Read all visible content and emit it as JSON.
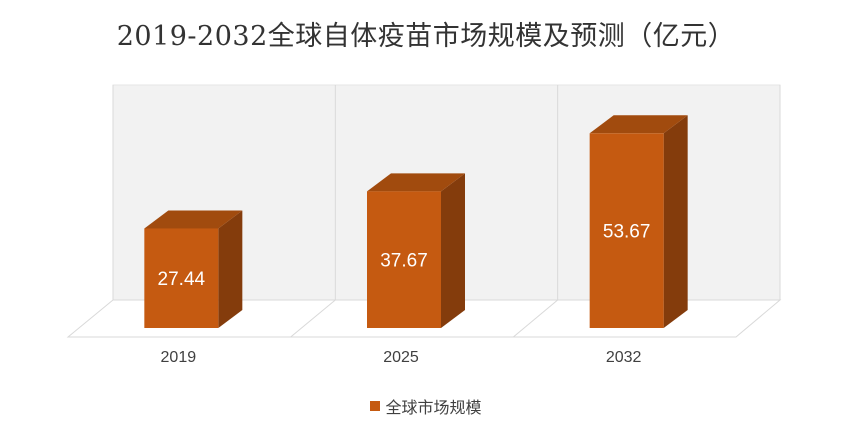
{
  "chart_data": {
    "type": "bar",
    "title": "2019-2032全球自体疫苗市场规模及预测（亿元）",
    "categories": [
      "2019",
      "2025",
      "2032"
    ],
    "series": [
      {
        "name": "全球市场规模",
        "values": [
          27.44,
          37.67,
          53.67
        ]
      }
    ],
    "data_labels": [
      "27.44",
      "37.67",
      "53.67"
    ],
    "ylim": [
      0,
      60
    ],
    "grid": false,
    "legend_position": "bottom",
    "three_d": true,
    "colors": {
      "bar_front": "#C55A11",
      "bar_side": "#843C0C",
      "bar_top": "#A14B0E",
      "back_wall": "#F2F2F2",
      "floor": "#FFFFFF",
      "axis_line": "#D9D9D9",
      "label": "#FFFFFF",
      "tick": "#404040"
    }
  }
}
